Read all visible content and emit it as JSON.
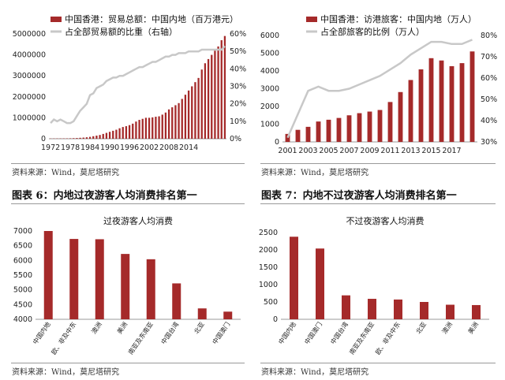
{
  "colors": {
    "bar": "#A52A2A",
    "line": "#C8C8C8",
    "axis": "#9a9a9a",
    "rule": "#999999"
  },
  "source_text": "资料来源：Wind，莫尼塔研究",
  "captions": {
    "fig6": "图表 6：内地过夜游客人均消费排名第一",
    "fig7": "图表 7：内地不过夜游客人均消费排名第一"
  },
  "chart_data": [
    {
      "type": "bar",
      "series": [
        {
          "name": "中国香港：贸易总额：中国内地（百万港元）",
          "type": "bar",
          "values": [
            10000,
            12000,
            14000,
            15000,
            16000,
            18000,
            22000,
            28000,
            35000,
            45000,
            55000,
            70000,
            90000,
            120000,
            150000,
            180000,
            230000,
            280000,
            330000,
            380000,
            430000,
            500000,
            560000,
            600000,
            650000,
            720000,
            820000,
            900000,
            950000,
            1000000,
            1000000,
            1020000,
            1050000,
            1070000,
            1150000,
            1250000,
            1400000,
            1500000,
            1600000,
            1700000,
            1900000,
            2100000,
            2300000,
            2500000,
            2700000,
            2900000,
            3300000,
            3600000,
            3800000,
            4000000,
            4200000,
            4400000,
            4700000,
            4900000
          ]
        },
        {
          "name": "占全部贸易额的比重（右轴）",
          "type": "line",
          "values": [
            9,
            11,
            10,
            11,
            10,
            9,
            9,
            10,
            13,
            16,
            18,
            20,
            25,
            26,
            29,
            30,
            31,
            33,
            34,
            35,
            35,
            36,
            36,
            37,
            38,
            39,
            40,
            41,
            41,
            42,
            43,
            44,
            44,
            45,
            46,
            47,
            47,
            48,
            48,
            49,
            49,
            49,
            50,
            50,
            50,
            50,
            51,
            51,
            51,
            51,
            51,
            51,
            51,
            53
          ]
        }
      ],
      "x_ticks": [
        "1972",
        "1978",
        "1984",
        "1990",
        "1996",
        "2002",
        "2008",
        "2014"
      ],
      "y_left": {
        "min": 0,
        "max": 5000000,
        "ticks": [
          "0",
          "1000000",
          "2000000",
          "3000000",
          "4000000",
          "5000000"
        ]
      },
      "y_right": {
        "min": 0,
        "max": 60,
        "ticks": [
          "0%",
          "10%",
          "20%",
          "30%",
          "40%",
          "50%",
          "60%"
        ]
      },
      "legend": "top-left"
    },
    {
      "type": "bar",
      "series": [
        {
          "name": "中国香港：访港旅客：中国内地（万人）",
          "type": "bar",
          "values": [
            450,
            680,
            850,
            1150,
            1250,
            1350,
            1500,
            1620,
            1710,
            1800,
            2250,
            2810,
            3490,
            4090,
            4720,
            4590,
            4270,
            4440,
            5100
          ]
        },
        {
          "name": "占全部旅客的比例（万人）",
          "type": "line",
          "values": [
            32,
            43,
            54,
            56,
            54,
            54,
            55,
            57,
            59,
            61,
            64,
            67,
            71,
            74,
            77,
            77,
            76,
            76,
            78
          ]
        }
      ],
      "x_ticks": [
        "2001",
        "2003",
        "2005",
        "2007",
        "2009",
        "2011",
        "2013",
        "2015",
        "2017"
      ],
      "y_left": {
        "min": 0,
        "max": 6000,
        "ticks": [
          "0",
          "1000",
          "2000",
          "3000",
          "4000",
          "5000",
          "6000"
        ]
      },
      "y_right": {
        "min": 30,
        "max": 80,
        "ticks": [
          "30%",
          "40%",
          "50%",
          "60%",
          "70%",
          "80%"
        ]
      },
      "legend": "top-left"
    },
    {
      "type": "bar",
      "title": "过夜游客人均消费",
      "categories": [
        "中国内地",
        "欧、非及中东",
        "澳洲",
        "美洲",
        "南亚及东南亚",
        "中国台湾",
        "北亚",
        "中国澳门"
      ],
      "values": [
        7000,
        6730,
        6720,
        6220,
        6040,
        5220,
        4370,
        4260
      ],
      "ylim": [
        4000,
        7000
      ],
      "y_ticks": [
        "4000",
        "4500",
        "5000",
        "5500",
        "6000",
        "6500",
        "7000"
      ]
    },
    {
      "type": "bar",
      "title": "不过夜游客人均消费",
      "categories": [
        "中国内地",
        "中国澳门",
        "中国台湾",
        "南亚及东南亚",
        "欧、非及中东",
        "北亚",
        "澳洲",
        "美洲"
      ],
      "values": [
        2380,
        2040,
        690,
        590,
        570,
        500,
        420,
        410
      ],
      "ylim": [
        0,
        2500
      ],
      "y_ticks": [
        "0",
        "500",
        "1000",
        "1500",
        "2000",
        "2500"
      ]
    }
  ]
}
